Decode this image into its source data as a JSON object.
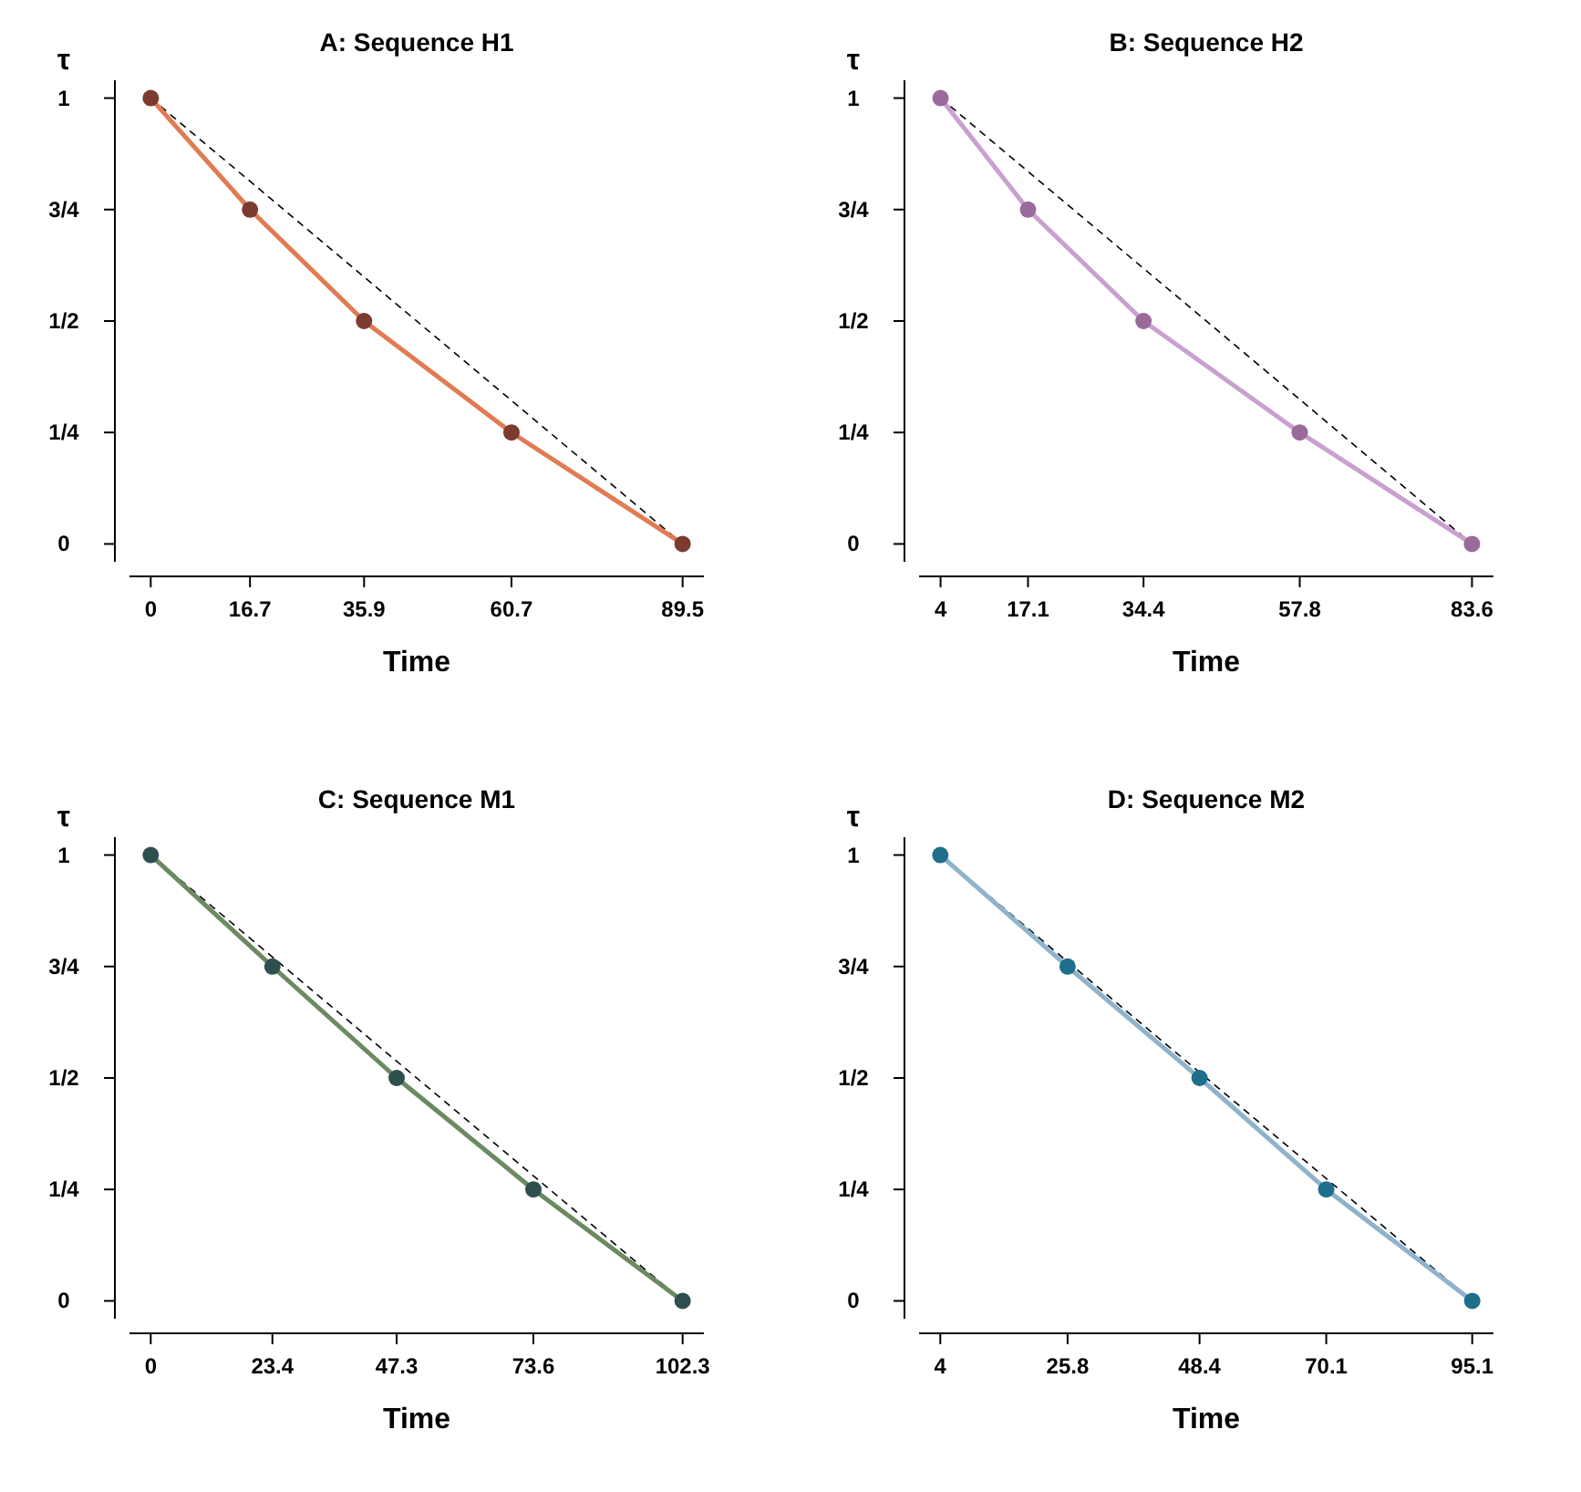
{
  "chart_data": [
    {
      "type": "line",
      "title": "A: Sequence H1",
      "xlabel": "Time",
      "ylabel": "τ",
      "xlim": [
        -3.58,
        93.08
      ],
      "ylim": [
        -0.04,
        1.04
      ],
      "xticks": [
        0,
        16.7,
        35.9,
        60.7,
        89.5
      ],
      "yticks": [
        {
          "value": 0,
          "label": "0"
        },
        {
          "value": 0.25,
          "label": "1/4"
        },
        {
          "value": 0.5,
          "label": "1/2"
        },
        {
          "value": 0.75,
          "label": "3/4"
        },
        {
          "value": 1,
          "label": "1"
        }
      ],
      "series": [
        {
          "color": "#000000",
          "line_style": "dashed",
          "marker": "none",
          "x": [
            0,
            89.5
          ],
          "values": [
            1,
            0
          ]
        },
        {
          "color": "#e07b54",
          "line_style": "solid",
          "marker": "none",
          "x": [
            0,
            16.7,
            35.9,
            60.7,
            89.5
          ],
          "values": [
            1,
            0.75,
            0.5,
            0.25,
            0
          ]
        },
        {
          "type": "scatter",
          "color": "#7b3b2e",
          "marker": "circle",
          "x": [
            0,
            16.7,
            35.9,
            60.7,
            89.5
          ],
          "values": [
            1,
            0.75,
            0.5,
            0.25,
            0
          ]
        }
      ]
    },
    {
      "type": "line",
      "title": "B: Sequence H2",
      "xlabel": "Time",
      "ylabel": "τ",
      "xlim": [
        0.78,
        86.82
      ],
      "ylim": [
        -0.04,
        1.04
      ],
      "xticks": [
        4,
        17.1,
        34.4,
        57.8,
        83.6
      ],
      "yticks": [
        {
          "value": 0,
          "label": "0"
        },
        {
          "value": 0.25,
          "label": "1/4"
        },
        {
          "value": 0.5,
          "label": "1/2"
        },
        {
          "value": 0.75,
          "label": "3/4"
        },
        {
          "value": 1,
          "label": "1"
        }
      ],
      "series": [
        {
          "color": "#000000",
          "line_style": "dashed",
          "marker": "none",
          "x": [
            4,
            83.6
          ],
          "values": [
            1,
            0
          ]
        },
        {
          "color": "#c9a0d0",
          "line_style": "solid",
          "marker": "none",
          "x": [
            4,
            17.1,
            34.4,
            57.8,
            83.6
          ],
          "values": [
            1,
            0.75,
            0.5,
            0.25,
            0
          ]
        },
        {
          "type": "scatter",
          "color": "#9a6b9a",
          "marker": "circle",
          "x": [
            4,
            17.1,
            34.4,
            57.8,
            83.6
          ],
          "values": [
            1,
            0.75,
            0.5,
            0.25,
            0
          ]
        }
      ]
    },
    {
      "type": "line",
      "title": "C: Sequence M1",
      "xlabel": "Time",
      "ylabel": "τ",
      "xlim": [
        -4.09,
        106.39
      ],
      "ylim": [
        -0.04,
        1.04
      ],
      "xticks": [
        0,
        23.4,
        47.3,
        73.6,
        102.3
      ],
      "yticks": [
        {
          "value": 0,
          "label": "0"
        },
        {
          "value": 0.25,
          "label": "1/4"
        },
        {
          "value": 0.5,
          "label": "1/2"
        },
        {
          "value": 0.75,
          "label": "3/4"
        },
        {
          "value": 1,
          "label": "1"
        }
      ],
      "series": [
        {
          "color": "#000000",
          "line_style": "dashed",
          "marker": "none",
          "x": [
            0,
            102.3
          ],
          "values": [
            1,
            0
          ]
        },
        {
          "color": "#6b8a62",
          "line_style": "solid",
          "marker": "none",
          "x": [
            0,
            23.4,
            47.3,
            73.6,
            102.3
          ],
          "values": [
            1,
            0.75,
            0.5,
            0.25,
            0
          ]
        },
        {
          "type": "scatter",
          "color": "#2f4f4f",
          "marker": "circle",
          "x": [
            0,
            23.4,
            47.3,
            73.6,
            102.3
          ],
          "values": [
            1,
            0.75,
            0.5,
            0.25,
            0
          ]
        }
      ]
    },
    {
      "type": "line",
      "title": "D: Sequence M2",
      "xlabel": "Time",
      "ylabel": "τ",
      "xlim": [
        0.36,
        98.74
      ],
      "ylim": [
        -0.04,
        1.04
      ],
      "xticks": [
        4,
        25.8,
        48.4,
        70.1,
        95.1
      ],
      "yticks": [
        {
          "value": 0,
          "label": "0"
        },
        {
          "value": 0.25,
          "label": "1/4"
        },
        {
          "value": 0.5,
          "label": "1/2"
        },
        {
          "value": 0.75,
          "label": "3/4"
        },
        {
          "value": 1,
          "label": "1"
        }
      ],
      "series": [
        {
          "color": "#000000",
          "line_style": "dashed",
          "marker": "none",
          "x": [
            4,
            95.1
          ],
          "values": [
            1,
            0
          ]
        },
        {
          "color": "#8fb3cc",
          "line_style": "solid",
          "marker": "none",
          "x": [
            4,
            25.8,
            48.4,
            70.1,
            95.1
          ],
          "values": [
            1,
            0.75,
            0.5,
            0.25,
            0
          ]
        },
        {
          "type": "scatter",
          "color": "#1f6f8b",
          "marker": "circle",
          "x": [
            4,
            25.8,
            48.4,
            70.1,
            95.1
          ],
          "values": [
            1,
            0.75,
            0.5,
            0.25,
            0
          ]
        }
      ]
    }
  ]
}
